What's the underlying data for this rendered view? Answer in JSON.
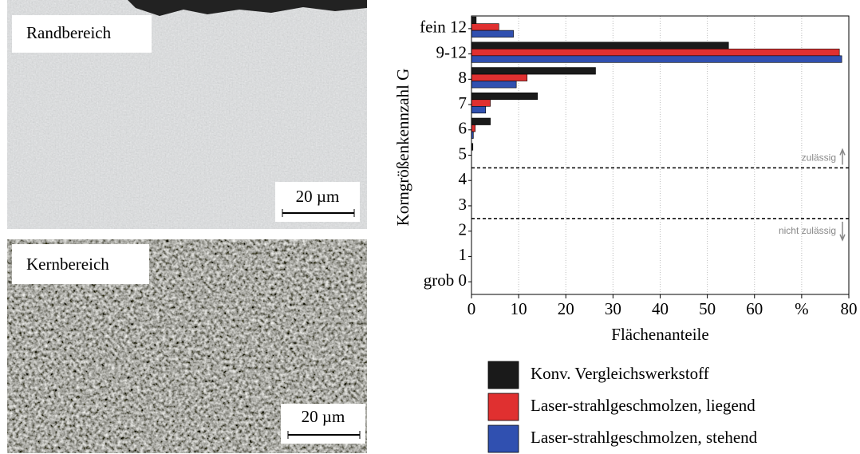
{
  "micrographs": [
    {
      "label": "Randbereich",
      "scale": "20 µm"
    },
    {
      "label": "Kernbereich",
      "scale": "20 µm"
    }
  ],
  "chart_data": {
    "type": "hbar",
    "categories": [
      "fein 12",
      "9-12",
      "8",
      "7",
      "6",
      "5",
      "4",
      "3",
      "2",
      "1",
      "grob 0"
    ],
    "series": [
      {
        "name": "Konv. Vergleichswerkstoff",
        "color": "#1a1a1a",
        "values": [
          1,
          54.5,
          26.3,
          14,
          4,
          0.3,
          0,
          0,
          0,
          0,
          0
        ]
      },
      {
        "name": "Laser-strahlgeschmolzen, liegend",
        "color": "#e03030",
        "values": [
          5.8,
          78,
          11.8,
          4,
          0.8,
          0,
          0,
          0,
          0,
          0,
          0
        ]
      },
      {
        "name": "Laser-strahlgeschmolzen, stehend",
        "color": "#3050b0",
        "values": [
          8.9,
          78.5,
          9.5,
          3,
          0.4,
          0,
          0,
          0,
          0,
          0,
          0
        ]
      }
    ],
    "xlim": [
      0,
      80
    ],
    "xticks": [
      0,
      10,
      20,
      30,
      40,
      50,
      60,
      {
        "value": 70,
        "label": "%"
      },
      80
    ],
    "xlabel": "Flächenanteile",
    "ylabel": "Korngrößenkennzahl G",
    "annotations": [
      "zulässig",
      "nicht zulässig"
    ],
    "grid": true,
    "legend": "bottom"
  }
}
